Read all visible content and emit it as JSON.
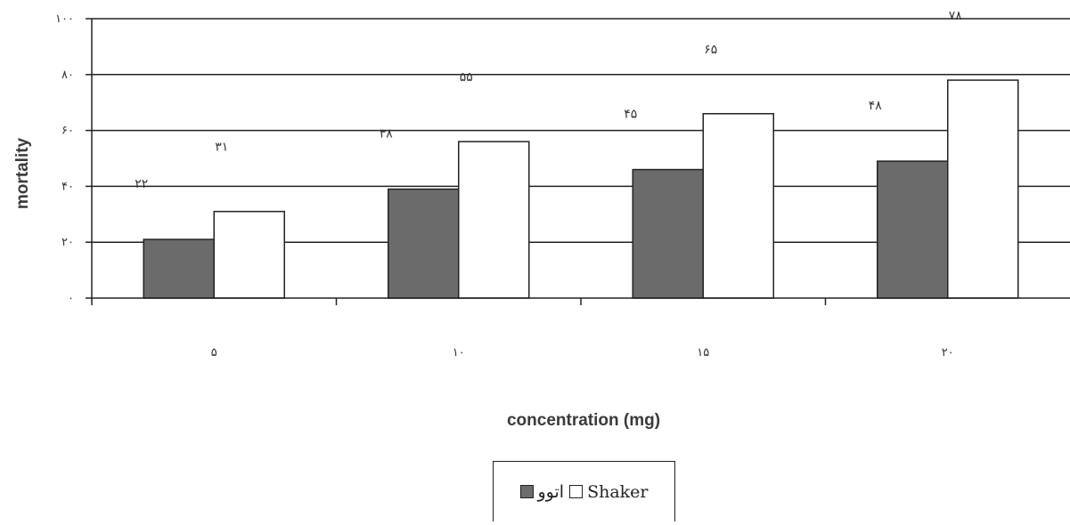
{
  "chart_data": {
    "type": "bar",
    "categories": [
      "۵",
      "۱۰",
      "۱۵",
      "۲۰"
    ],
    "series": [
      {
        "name": "اتوو",
        "values": [
          22,
          38,
          45,
          48
        ],
        "labels": [
          "۲۲",
          "۳۸",
          "۴۵",
          "۴۸"
        ],
        "color": "#6b6b6b"
      },
      {
        "name": "Shaker",
        "values": [
          31,
          55,
          65,
          78
        ],
        "labels": [
          "۳۱",
          "۵۵",
          "۶۵",
          "۷۸"
        ],
        "color": "#ffffff"
      }
    ],
    "bar_heights": [
      [
        21,
        39,
        46,
        49
      ],
      [
        31,
        56,
        66,
        78
      ]
    ],
    "y_ticks": [
      0,
      20,
      40,
      60,
      80,
      100
    ],
    "y_tick_labels": [
      "۰",
      "۲۰",
      "۴۰",
      "۶۰",
      "۸۰",
      "۱۰۰"
    ],
    "xlabel": "concentration (mg)",
    "ylabel": "mortality",
    "ylim": [
      0,
      100
    ],
    "grid": true,
    "legend_position": "bottom"
  }
}
